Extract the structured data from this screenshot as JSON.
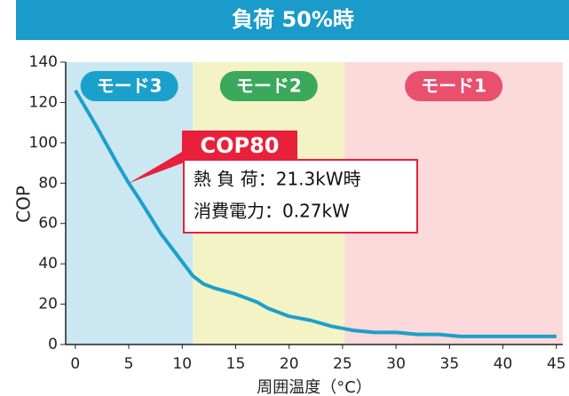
{
  "chart_data": {
    "type": "line",
    "title": "負荷 50%時",
    "x_label": "周囲温度（°C）",
    "y_label": "COP",
    "x": [
      0,
      2,
      4,
      5,
      6,
      8,
      10,
      11,
      12,
      13,
      15,
      17,
      18,
      20,
      22,
      24,
      25,
      26,
      28,
      30,
      32,
      34,
      36,
      38,
      40,
      42,
      45
    ],
    "series": [
      {
        "name": "COP",
        "color": "#1ba0cc",
        "values": [
          126,
          108,
          89,
          80,
          72,
          55,
          41,
          34,
          30,
          28,
          25,
          21,
          18,
          14,
          12,
          9,
          8,
          7,
          6,
          6,
          5,
          5,
          4,
          4,
          4,
          4,
          4
        ]
      }
    ],
    "xlim": [
      -0.9,
      45.6
    ],
    "ylim": [
      0,
      140
    ],
    "xticks": [
      0,
      5,
      10,
      15,
      20,
      25,
      30,
      35,
      40,
      45
    ],
    "yticks": [
      0,
      20,
      40,
      60,
      80,
      100,
      120,
      140
    ],
    "modes": [
      {
        "name": "モード3",
        "range": [
          -0.9,
          11
        ],
        "color": "#cbe7f2",
        "label_color": "#1ba0cc"
      },
      {
        "name": "モード2",
        "range": [
          11,
          25.2
        ],
        "color": "#f3f3c6",
        "label_color": "#3aa95c"
      },
      {
        "name": "モード1",
        "range": [
          25.2,
          45.6
        ],
        "color": "#fcd9da",
        "label_color": "#e8506e"
      }
    ],
    "annotation": {
      "title": "COP80",
      "x": 5,
      "y": 80,
      "lines": [
        "熱 負 荷：21.3kW時",
        "消費電力：0.27kW"
      ]
    }
  }
}
